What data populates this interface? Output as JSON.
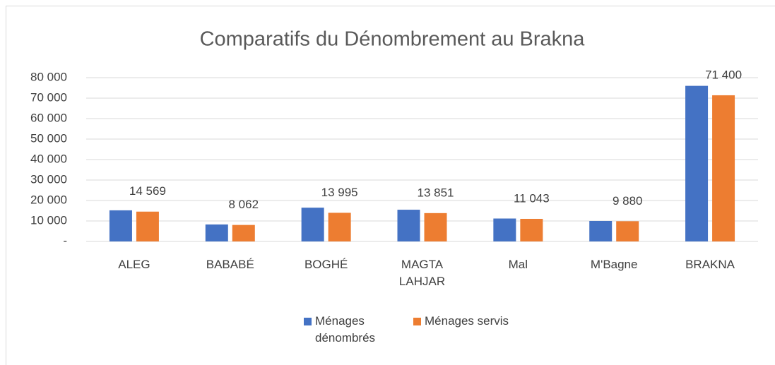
{
  "chart_data": {
    "type": "bar",
    "title": "Comparatifs du Dénombrement au Brakna",
    "categories": [
      "ALEG",
      "BABABÉ",
      "BOGHÉ",
      "MAGTA LAHJAR",
      "Mal",
      "M'Bagne",
      "BRAKNA"
    ],
    "series": [
      {
        "name": "Ménages dénombrés",
        "color": "#4472c4",
        "values": [
          15200,
          8300,
          16500,
          15500,
          11200,
          10000,
          76000
        ]
      },
      {
        "name": "Ménages servis",
        "color": "#ed7d31",
        "values": [
          14569,
          8062,
          13995,
          13851,
          11043,
          9880,
          71400
        ],
        "value_labels": [
          "14 569",
          "8 062",
          "13 995",
          "13 851",
          "11 043",
          "9 880",
          "71 400"
        ]
      }
    ],
    "ylim": [
      0,
      80000
    ],
    "yticks": [
      {
        "value": 0,
        "label": "-"
      },
      {
        "value": 10000,
        "label": "10 000"
      },
      {
        "value": 20000,
        "label": "20 000"
      },
      {
        "value": 30000,
        "label": "30 000"
      },
      {
        "value": 40000,
        "label": "40 000"
      },
      {
        "value": 50000,
        "label": "50 000"
      },
      {
        "value": 60000,
        "label": "60 000"
      },
      {
        "value": 70000,
        "label": "70 000"
      },
      {
        "value": 80000,
        "label": "80 000"
      }
    ],
    "grid": true,
    "legend": "bottom"
  }
}
